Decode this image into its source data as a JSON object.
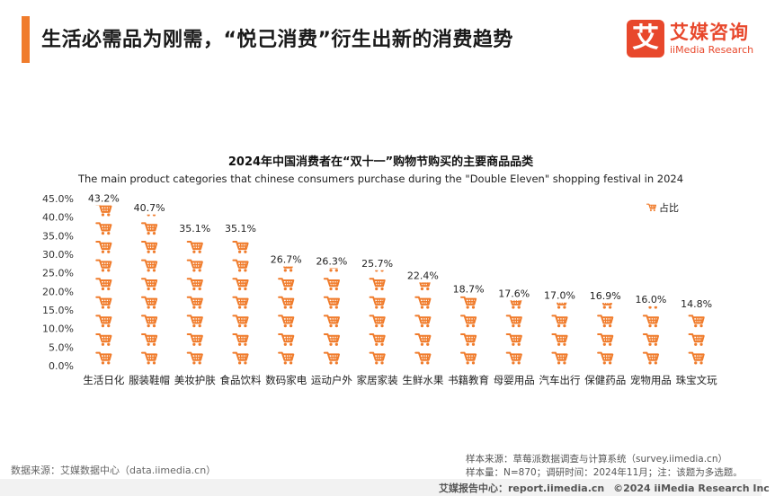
{
  "header": {
    "title": "生活必需品为刚需，“悦己消费”衍生出新的消费趋势"
  },
  "logo": {
    "glyph": "艾",
    "cn": "艾媒咨询",
    "en": "iiMedia Research",
    "color": "#e8482c"
  },
  "chart_data": {
    "type": "bar",
    "title": "2024年中国消费者在“双十一”购物节购买的主要商品品类",
    "subtitle": "The main product categories that chinese consumers purchase during the \"Double Eleven\" shopping festival in 2024",
    "categories": [
      "生活日化",
      "服装鞋帽",
      "美妆护肤",
      "食品饮料",
      "数码家电",
      "运动户外",
      "家居家装",
      "生鲜水果",
      "书籍教育",
      "母婴用品",
      "汽车出行",
      "保健药品",
      "宠物用品",
      "珠宝文玩"
    ],
    "series": [
      {
        "name": "占比",
        "values": [
          43.2,
          40.7,
          35.1,
          35.1,
          26.7,
          26.3,
          25.7,
          22.4,
          18.7,
          17.6,
          17.0,
          16.9,
          16.0,
          14.8
        ]
      }
    ],
    "value_labels": [
      "43.2%",
      "40.7%",
      "35.1%",
      "35.1%",
      "26.7%",
      "26.3%",
      "25.7%",
      "22.4%",
      "18.7%",
      "17.6%",
      "17.0%",
      "16.9%",
      "16.0%",
      "14.8%"
    ],
    "y_ticks": [
      "0.0%",
      "5.0%",
      "10.0%",
      "15.0%",
      "20.0%",
      "25.0%",
      "30.0%",
      "35.0%",
      "40.0%",
      "45.0%"
    ],
    "ylim": [
      0,
      45
    ],
    "legend_position": "top-right",
    "icon": "shopping-cart-icon",
    "color": "#f07c2c",
    "grid": false
  },
  "sources": {
    "left": "数据来源：艾媒数据中心（data.iimedia.cn）",
    "right_line1": "样本来源：草莓派数据调查与计算系统（survey.iimedia.cn）",
    "right_line2": "样本量：N=870；调研时间：2024年11月；注：该题为多选题。"
  },
  "footer": {
    "report": "艾媒报告中心：report.iimedia.cn",
    "copyright": "©2024  iiMedia Research  Inc"
  }
}
